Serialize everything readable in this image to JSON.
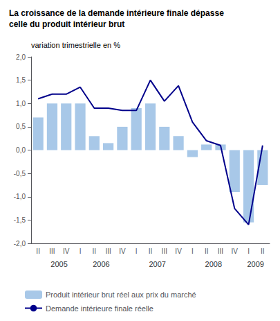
{
  "chart_data": {
    "type": "bar",
    "title": "La croissance de la demande intérieure finale dépasse\ncelle du produit intérieur brut",
    "ylabel": "variation trimestrielle en %",
    "categories": [
      "II",
      "III",
      "IV",
      "I",
      "II",
      "III",
      "IV",
      "I",
      "II",
      "III",
      "IV",
      "I",
      "II",
      "III",
      "IV",
      "I",
      "II"
    ],
    "series": [
      {
        "name": "Produit intérieur brut réel aux prix du marché",
        "type": "bar",
        "color": "#a8c8e8",
        "values": [
          0.7,
          1.0,
          1.0,
          1.0,
          0.3,
          0.15,
          0.5,
          0.9,
          1.0,
          0.5,
          0.3,
          -0.15,
          0.12,
          0.12,
          -0.9,
          -1.55,
          -0.75
        ]
      },
      {
        "name": "Demande intérieure finale réelle",
        "type": "line",
        "color": "#00008B",
        "values": [
          1.1,
          1.2,
          1.2,
          1.35,
          0.9,
          0.9,
          0.85,
          0.85,
          1.5,
          1.05,
          1.38,
          0.6,
          0.2,
          0.1,
          -1.25,
          -1.6,
          0.1
        ]
      }
    ],
    "annotations": [
      {
        "text": "2005",
        "x": 1.5
      },
      {
        "text": "2006",
        "x": 4.5
      },
      {
        "text": "2007",
        "x": 8.5
      },
      {
        "text": "2008",
        "x": 12.5
      },
      {
        "text": "2009",
        "x": 15.5
      }
    ],
    "ylim": [
      -2.0,
      2.0
    ],
    "yticks": [
      {
        "value": -2.0,
        "label": "-2,0"
      },
      {
        "value": -1.5,
        "label": "-1,5"
      },
      {
        "value": -1.0,
        "label": "-1,0"
      },
      {
        "value": -0.5,
        "label": "-0,5"
      },
      {
        "value": 0.0,
        "label": "0,0"
      },
      {
        "value": 0.5,
        "label": "0,5"
      },
      {
        "value": 1.0,
        "label": "1,0"
      },
      {
        "value": 1.5,
        "label": "1,5"
      },
      {
        "value": 2.0,
        "label": "2,0"
      }
    ],
    "grid": false,
    "legend": "bottom"
  }
}
